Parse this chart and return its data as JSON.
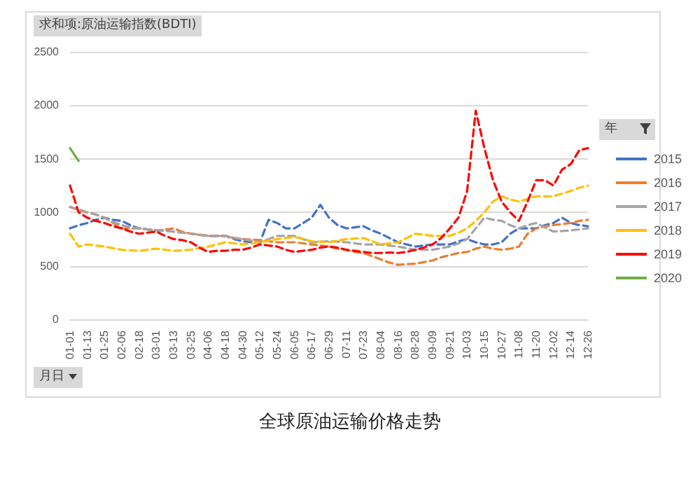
{
  "chart_data": {
    "type": "line",
    "title": "全球原油运输价格走势",
    "ylabel": "求和项:原油运输指数(BDTI)",
    "xlabel": "月日",
    "legend_title": "年",
    "categories": [
      "01-01",
      null,
      "01-13",
      null,
      "01-25",
      null,
      "02-06",
      null,
      "02-18",
      null,
      "03-01",
      null,
      "03-13",
      null,
      "03-25",
      null,
      "04-06",
      null,
      "04-18",
      null,
      "04-30",
      null,
      "05-12",
      null,
      "05-24",
      null,
      "06-05",
      null,
      "06-17",
      null,
      "06-29",
      null,
      "07-11",
      null,
      "07-23",
      null,
      "08-04",
      null,
      "08-16",
      null,
      "08-28",
      null,
      "09-09",
      null,
      "09-21",
      null,
      "10-03",
      null,
      "10-15",
      null,
      "10-27",
      null,
      "11-08",
      null,
      "11-20",
      null,
      "12-02",
      null,
      "12-14",
      null,
      "12-26"
    ],
    "series": [
      {
        "name": "2015",
        "color": "#4472c4",
        "line_style": "dashed",
        "values": [
          850,
          880,
          900,
          930,
          950,
          930,
          920,
          880,
          850,
          840,
          830,
          830,
          820,
          810,
          800,
          790,
          780,
          780,
          780,
          750,
          730,
          720,
          720,
          930,
          900,
          850,
          850,
          900,
          950,
          1070,
          950,
          880,
          850,
          860,
          870,
          830,
          800,
          760,
          720,
          700,
          680,
          690,
          700,
          700,
          700,
          730,
          750,
          720,
          700,
          700,
          720,
          800,
          850,
          850,
          850,
          880,
          900,
          950,
          900,
          880,
          870
        ]
      },
      {
        "name": "2016",
        "color": "#ed7d31",
        "line_style": "dashed",
        "values": [
          1050,
          1020,
          1000,
          980,
          950,
          900,
          850,
          850,
          850,
          840,
          830,
          840,
          850,
          820,
          800,
          790,
          780,
          780,
          780,
          760,
          750,
          745,
          740,
          730,
          720,
          720,
          720,
          710,
          700,
          690,
          680,
          660,
          650,
          630,
          620,
          590,
          560,
          530,
          510,
          515,
          520,
          535,
          550,
          580,
          600,
          620,
          630,
          660,
          680,
          660,
          650,
          660,
          680,
          800,
          850,
          870,
          880,
          890,
          900,
          920,
          930
        ]
      },
      {
        "name": "2017",
        "color": "#a5a5a5",
        "line_style": "dashed",
        "values": [
          1050,
          1030,
          1000,
          980,
          950,
          910,
          880,
          860,
          850,
          840,
          830,
          825,
          820,
          810,
          800,
          790,
          780,
          780,
          780,
          760,
          750,
          735,
          720,
          750,
          780,
          780,
          780,
          750,
          720,
          725,
          730,
          725,
          720,
          710,
          700,
          700,
          700,
          690,
          680,
          665,
          650,
          650,
          650,
          665,
          680,
          710,
          750,
          850,
          950,
          930,
          920,
          880,
          850,
          880,
          900,
          860,
          820,
          825,
          830,
          840,
          850
        ]
      },
      {
        "name": "2018",
        "color": "#ffc000",
        "line_style": "dashed",
        "values": [
          800,
          680,
          700,
          690,
          680,
          665,
          650,
          645,
          640,
          650,
          660,
          650,
          640,
          645,
          650,
          665,
          680,
          700,
          720,
          710,
          700,
          710,
          720,
          735,
          750,
          760,
          770,
          750,
          730,
          725,
          720,
          735,
          750,
          755,
          760,
          730,
          700,
          710,
          720,
          760,
          800,
          790,
          780,
          780,
          780,
          810,
          850,
          920,
          1000,
          1100,
          1150,
          1120,
          1100,
          1125,
          1150,
          1150,
          1150,
          1175,
          1200,
          1230,
          1250
        ]
      },
      {
        "name": "2019",
        "color": "#ff0000",
        "line_style": "dashed",
        "values": [
          1250,
          1000,
          950,
          920,
          900,
          870,
          850,
          820,
          800,
          810,
          820,
          780,
          750,
          740,
          720,
          670,
          630,
          640,
          640,
          650,
          650,
          670,
          700,
          690,
          680,
          650,
          630,
          640,
          650,
          670,
          680,
          670,
          650,
          640,
          630,
          620,
          620,
          625,
          620,
          630,
          650,
          670,
          700,
          760,
          850,
          950,
          1200,
          1950,
          1600,
          1300,
          1100,
          1000,
          920,
          1100,
          1300,
          1300,
          1250,
          1400,
          1450,
          1580,
          1600
        ]
      },
      {
        "name": "2020",
        "color": "#70ad47",
        "line_style": "solid",
        "values": [
          1600,
          1480,
          null,
          null,
          null,
          null,
          null,
          null,
          null,
          null,
          null,
          null,
          null,
          null,
          null,
          null,
          null,
          null,
          null,
          null,
          null,
          null,
          null,
          null,
          null,
          null,
          null,
          null,
          null,
          null,
          null,
          null,
          null,
          null,
          null,
          null,
          null,
          null,
          null,
          null,
          null,
          null,
          null,
          null,
          null,
          null,
          null,
          null,
          null,
          null,
          null,
          null,
          null,
          null,
          null,
          null,
          null,
          null,
          null,
          null,
          null
        ]
      }
    ],
    "ylim": [
      0,
      2500
    ],
    "yticks": [
      0,
      500,
      1000,
      1500,
      2000,
      2500
    ],
    "grid": "y",
    "legend": "right",
    "marker": "none"
  }
}
